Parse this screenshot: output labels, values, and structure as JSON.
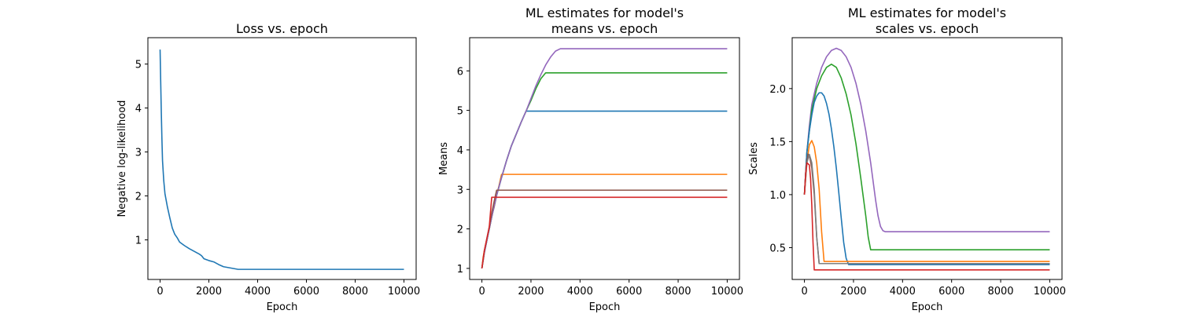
{
  "chart_data": [
    {
      "type": "line",
      "title": "Loss vs. epoch",
      "xlabel": "Epoch",
      "ylabel": "Negative log-likelihood",
      "xlim": [
        -500,
        10500
      ],
      "ylim": [
        0.1,
        5.6
      ],
      "xticks": [
        0,
        2000,
        4000,
        6000,
        8000,
        10000
      ],
      "yticks": [
        1,
        2,
        3,
        4,
        5
      ],
      "grid": false,
      "series": [
        {
          "color": "#1f77b4",
          "x": [
            0,
            25,
            50,
            75,
            100,
            150,
            200,
            250,
            300,
            400,
            500,
            600,
            700,
            800,
            1000,
            1200,
            1400,
            1600,
            1700,
            1800,
            2000,
            2200,
            2400,
            2600,
            2800,
            3000,
            3200,
            3400,
            3600,
            4000,
            10000
          ],
          "y": [
            5.33,
            4.6,
            3.9,
            3.3,
            2.8,
            2.35,
            2.05,
            1.9,
            1.75,
            1.5,
            1.27,
            1.13,
            1.05,
            0.95,
            0.87,
            0.8,
            0.74,
            0.68,
            0.64,
            0.57,
            0.53,
            0.5,
            0.44,
            0.39,
            0.37,
            0.35,
            0.33,
            0.33,
            0.33,
            0.33,
            0.33
          ]
        }
      ]
    },
    {
      "type": "line",
      "title": "ML estimates for model's\nmeans vs. epoch",
      "xlabel": "Epoch",
      "ylabel": "Means",
      "xlim": [
        -500,
        10500
      ],
      "ylim": [
        0.72,
        6.84
      ],
      "xticks": [
        0,
        2000,
        4000,
        6000,
        8000,
        10000
      ],
      "yticks": [
        1,
        2,
        3,
        4,
        5,
        6
      ],
      "grid": false,
      "series": [
        {
          "color": "#ff7f0e",
          "x": [
            0,
            50,
            100,
            200,
            300,
            400,
            500,
            600,
            700,
            800,
            10000
          ],
          "y": [
            1.0,
            1.28,
            1.45,
            1.74,
            2.0,
            2.35,
            2.55,
            2.85,
            3.1,
            3.38,
            3.38
          ]
        },
        {
          "color": "#1f77b4",
          "x": [
            0,
            100,
            200,
            400,
            600,
            800,
            1000,
            1200,
            1400,
            1600,
            1800,
            10000
          ],
          "y": [
            1.0,
            1.4,
            1.7,
            2.3,
            2.85,
            3.3,
            3.72,
            4.1,
            4.4,
            4.7,
            4.98,
            4.98
          ]
        },
        {
          "color": "#2ca02c",
          "x": [
            0,
            100,
            200,
            400,
            600,
            800,
            1000,
            1200,
            1400,
            1600,
            1800,
            2000,
            2200,
            2400,
            2600,
            10000
          ],
          "y": [
            1.0,
            1.4,
            1.7,
            2.3,
            2.85,
            3.3,
            3.72,
            4.1,
            4.4,
            4.7,
            4.98,
            5.25,
            5.55,
            5.8,
            5.95,
            5.95
          ]
        },
        {
          "color": "#9467bd",
          "x": [
            0,
            100,
            200,
            400,
            600,
            800,
            1000,
            1200,
            1400,
            1600,
            1800,
            2000,
            2200,
            2400,
            2600,
            2800,
            3000,
            3200,
            10000
          ],
          "y": [
            1.0,
            1.4,
            1.7,
            2.3,
            2.85,
            3.3,
            3.72,
            4.1,
            4.4,
            4.7,
            4.98,
            5.3,
            5.62,
            5.9,
            6.15,
            6.35,
            6.5,
            6.56,
            6.56
          ]
        },
        {
          "color": "#8c564b",
          "x": [
            0,
            100,
            200,
            300,
            400,
            500,
            600,
            10000
          ],
          "y": [
            1.0,
            1.45,
            1.75,
            2.05,
            2.4,
            2.7,
            2.98,
            2.98
          ]
        },
        {
          "color": "#d62728",
          "x": [
            0,
            100,
            200,
            300,
            400,
            10000
          ],
          "y": [
            1.0,
            1.45,
            1.75,
            2.05,
            2.8,
            2.8
          ]
        }
      ]
    },
    {
      "type": "line",
      "title": "ML estimates for model's\nscales vs. epoch",
      "xlabel": "Epoch",
      "ylabel": "Scales",
      "xlim": [
        -500,
        10500
      ],
      "ylim": [
        0.2,
        2.48
      ],
      "xticks": [
        0,
        2000,
        4000,
        6000,
        8000,
        10000
      ],
      "yticks": [
        0.5,
        1.0,
        1.5,
        2.0
      ],
      "grid": false,
      "series": [
        {
          "color": "#9467bd",
          "x": [
            0,
            100,
            200,
            300,
            500,
            700,
            900,
            1100,
            1300,
            1500,
            1700,
            1900,
            2100,
            2300,
            2500,
            2700,
            2900,
            3000,
            3100,
            3200,
            3300,
            10000
          ],
          "y": [
            1.0,
            1.4,
            1.65,
            1.85,
            2.05,
            2.2,
            2.3,
            2.36,
            2.38,
            2.36,
            2.3,
            2.2,
            2.05,
            1.85,
            1.6,
            1.3,
            0.95,
            0.8,
            0.7,
            0.66,
            0.65,
            0.65
          ]
        },
        {
          "color": "#2ca02c",
          "x": [
            0,
            100,
            200,
            300,
            500,
            700,
            900,
            1100,
            1300,
            1500,
            1700,
            1900,
            2100,
            2300,
            2500,
            2600,
            2700,
            10000
          ],
          "y": [
            1.0,
            1.4,
            1.6,
            1.8,
            2.0,
            2.12,
            2.2,
            2.23,
            2.2,
            2.1,
            1.95,
            1.75,
            1.48,
            1.15,
            0.8,
            0.6,
            0.48,
            0.48
          ]
        },
        {
          "color": "#1f77b4",
          "x": [
            0,
            100,
            200,
            300,
            400,
            500,
            600,
            700,
            800,
            900,
            1000,
            1100,
            1200,
            1300,
            1400,
            1500,
            1600,
            1700,
            1800,
            10000
          ],
          "y": [
            1.0,
            1.4,
            1.6,
            1.75,
            1.87,
            1.93,
            1.96,
            1.96,
            1.93,
            1.86,
            1.76,
            1.62,
            1.45,
            1.25,
            1.02,
            0.78,
            0.55,
            0.4,
            0.34,
            0.34
          ]
        },
        {
          "color": "#ff7f0e",
          "x": [
            0,
            100,
            200,
            300,
            400,
            500,
            600,
            700,
            800,
            10000
          ],
          "y": [
            1.0,
            1.3,
            1.47,
            1.51,
            1.45,
            1.3,
            1.05,
            0.65,
            0.37,
            0.37
          ]
        },
        {
          "color": "#8c564b",
          "x": [
            0,
            50,
            100,
            150,
            200,
            300,
            400,
            500,
            600,
            10000
          ],
          "y": [
            1.0,
            1.2,
            1.32,
            1.38,
            1.37,
            1.25,
            1.0,
            0.6,
            0.35,
            0.35
          ]
        },
        {
          "color": "#7f7f7f",
          "x": [
            0,
            50,
            100,
            200,
            300,
            400,
            500,
            600,
            10000
          ],
          "y": [
            1.0,
            1.15,
            1.3,
            1.38,
            1.3,
            1.05,
            0.6,
            0.35,
            0.35
          ]
        },
        {
          "color": "#d62728",
          "x": [
            0,
            50,
            100,
            200,
            250,
            300,
            350,
            400,
            10000
          ],
          "y": [
            1.0,
            1.2,
            1.3,
            1.28,
            1.15,
            0.9,
            0.55,
            0.29,
            0.29
          ]
        }
      ]
    }
  ]
}
